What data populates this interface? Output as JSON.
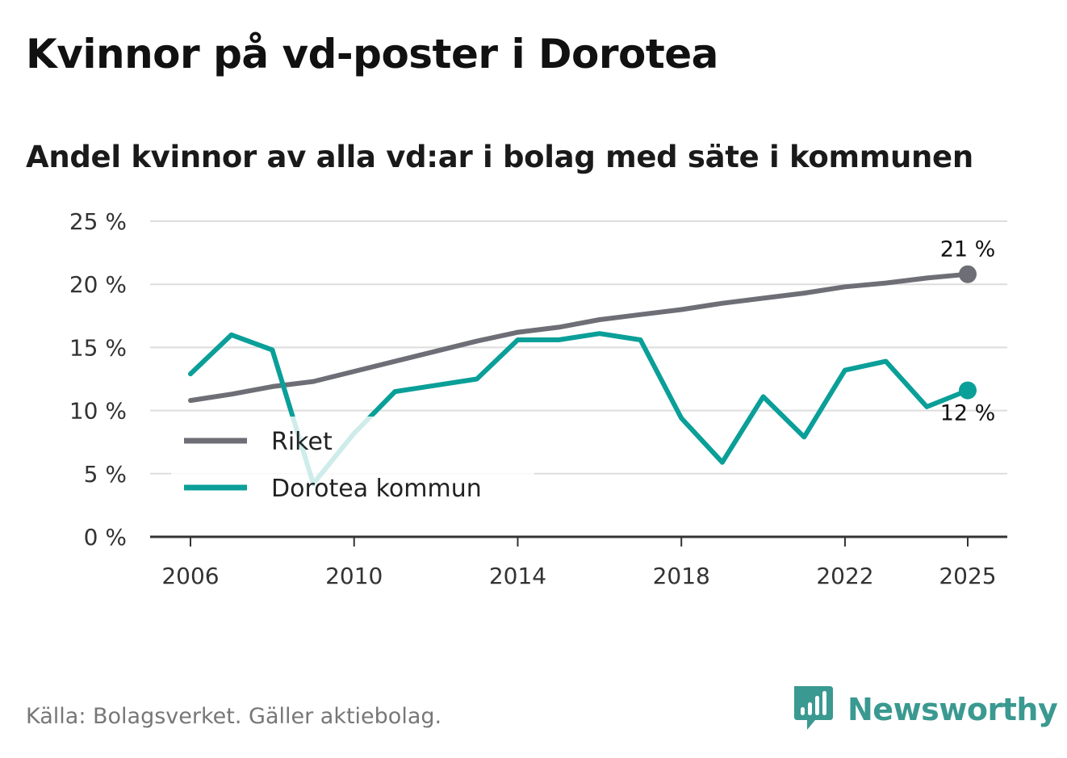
{
  "header": {
    "title": "Kvinnor på vd-poster i Dorotea",
    "subtitle": "Andel kvinnor av alla vd:ar i bolag med säte i kommunen"
  },
  "footer": {
    "source": "Källa: Bolagsverket. Gäller aktiebolag.",
    "brand": "Newsworthy",
    "brand_icon": "bar-chart-speech-bubble-icon"
  },
  "colors": {
    "riket": "#6e6e76",
    "dorotea": "#0a9f98",
    "dorotea_faded": "#c7ebe8",
    "grid": "#dddddd",
    "axis": "#333333",
    "brand": "#3a9990"
  },
  "chart_data": {
    "type": "line",
    "title": "Kvinnor på vd-poster i Dorotea",
    "subtitle": "Andel kvinnor av alla vd:ar i bolag med säte i kommunen",
    "x": [
      2006,
      2007,
      2008,
      2009,
      2010,
      2011,
      2012,
      2013,
      2014,
      2015,
      2016,
      2017,
      2018,
      2019,
      2020,
      2021,
      2022,
      2023,
      2024,
      2025
    ],
    "series": [
      {
        "name": "Riket",
        "values": [
          10.8,
          11.3,
          11.9,
          12.3,
          13.1,
          13.9,
          14.7,
          15.5,
          16.2,
          16.6,
          17.2,
          17.6,
          18.0,
          18.5,
          18.9,
          19.3,
          19.8,
          20.1,
          20.5,
          20.8
        ],
        "end_label": "21 %"
      },
      {
        "name": "Dorotea kommun",
        "values": [
          12.9,
          16.0,
          14.8,
          4.2,
          8.2,
          11.5,
          12.0,
          12.5,
          15.6,
          15.6,
          16.1,
          15.6,
          9.4,
          5.9,
          11.1,
          7.9,
          13.2,
          13.9,
          10.3,
          11.6
        ],
        "end_label": "12 %"
      }
    ],
    "xticks": [
      "2006",
      "2010",
      "2014",
      "2018",
      "2022",
      "2025"
    ],
    "yticks": [
      "0 %",
      "5 %",
      "10 %",
      "15 %",
      "20 %",
      "25 %"
    ],
    "ylim": [
      0,
      25
    ],
    "xlabel": "",
    "ylabel": "",
    "grid": true,
    "legend_position": "bottom-left"
  }
}
